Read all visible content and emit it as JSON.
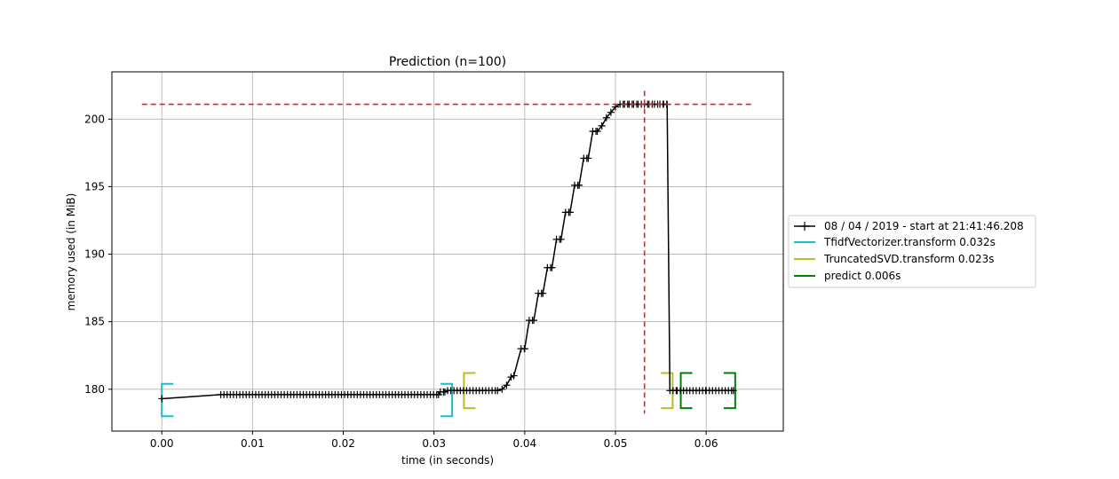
{
  "chart_data": {
    "type": "line",
    "title": "Prediction (n=100)",
    "xlabel": "time (in seconds)",
    "ylabel": "memory used (in MiB)",
    "xlim": [
      -0.0055,
      0.0685
    ],
    "ylim": [
      176.9,
      203.5
    ],
    "xticks": [
      0.0,
      0.01,
      0.02,
      0.03,
      0.04,
      0.05,
      0.06
    ],
    "xtick_labels": [
      "0.00",
      "0.01",
      "0.02",
      "0.03",
      "0.04",
      "0.05",
      "0.06"
    ],
    "yticks": [
      180,
      185,
      190,
      195,
      200
    ],
    "ytick_labels": [
      "180",
      "185",
      "190",
      "195",
      "200"
    ],
    "grid": true,
    "legend_position": "outside-right",
    "memory_series": {
      "name": "08 / 04 / 2019 - start at 21:41:46.208",
      "color": "#000000",
      "x": [
        0.0,
        0.0065,
        0.0305,
        0.0307,
        0.0312,
        0.0315,
        0.037,
        0.0375,
        0.038,
        0.0385,
        0.0388,
        0.0396,
        0.04,
        0.0405,
        0.041,
        0.0415,
        0.042,
        0.0425,
        0.043,
        0.0435,
        0.044,
        0.0445,
        0.045,
        0.0455,
        0.046,
        0.0465,
        0.047,
        0.0475,
        0.048,
        0.0485,
        0.049,
        0.0495,
        0.05,
        0.0505,
        0.051,
        0.0515,
        0.052,
        0.0525,
        0.0532,
        0.0537,
        0.0543,
        0.0549,
        0.0553,
        0.0557,
        0.056,
        0.0568,
        0.06,
        0.063
      ],
      "y": [
        179.3,
        179.6,
        179.6,
        179.8,
        179.8,
        179.9,
        179.9,
        180.0,
        180.3,
        180.9,
        181.0,
        183.0,
        183.0,
        185.1,
        185.1,
        187.1,
        187.1,
        189.0,
        189.0,
        191.1,
        191.1,
        193.1,
        193.1,
        195.1,
        195.1,
        197.1,
        197.1,
        199.1,
        199.1,
        199.5,
        200.1,
        200.5,
        200.9,
        201.1,
        201.1,
        201.1,
        201.1,
        201.1,
        201.1,
        201.1,
        201.1,
        201.1,
        201.1,
        201.1,
        179.9,
        179.9,
        179.9,
        179.9
      ]
    },
    "peak_markers": {
      "peak_memory": 201.1,
      "peak_time": 0.0532,
      "color": "#d62728"
    },
    "function_spans": [
      {
        "name": "TfidfVectorizer.transform 0.032s",
        "start": 0.0,
        "end": 0.032,
        "color": "#17becf",
        "ymin": 178.0,
        "ymax": 180.4
      },
      {
        "name": "TruncatedSVD.transform 0.023s",
        "start": 0.0333,
        "end": 0.0563,
        "color": "#bcbd22",
        "ymin": 178.6,
        "ymax": 181.2
      },
      {
        "name": "predict 0.006s",
        "start": 0.0572,
        "end": 0.0632,
        "color": "#008000",
        "ymin": 178.6,
        "ymax": 181.2
      }
    ]
  }
}
